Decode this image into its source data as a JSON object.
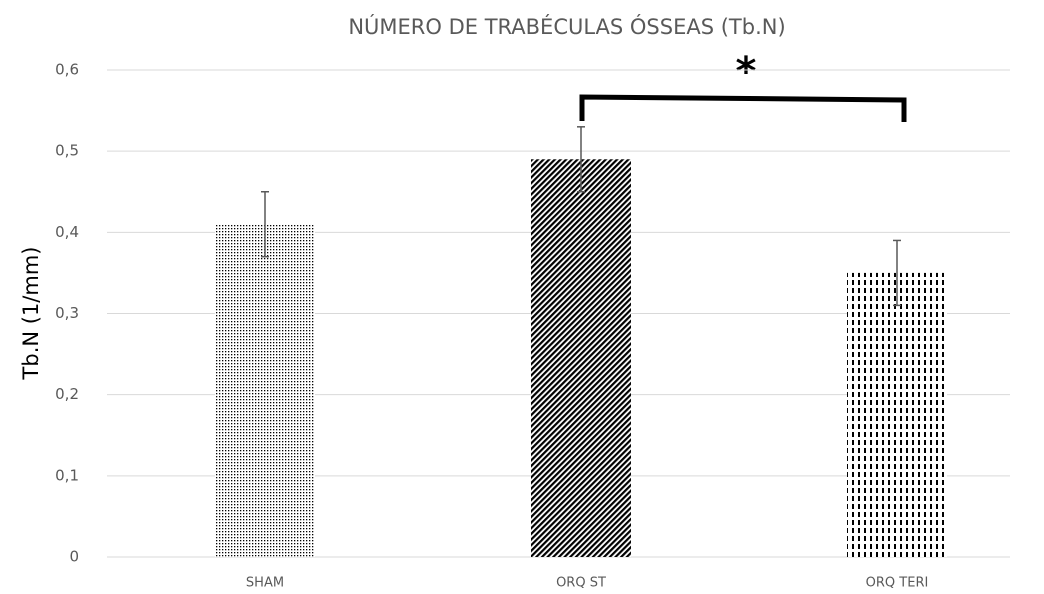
{
  "chart_data": {
    "type": "bar",
    "title": "NÚMERO DE TRABÉCULAS ÓSSEAS (Tb.N)",
    "ylabel": "Tb.N (1/mm)",
    "categories": [
      "SHAM",
      "ORQ ST",
      "ORQ TERI"
    ],
    "values": [
      0.41,
      0.49,
      0.35
    ],
    "errors": [
      0.04,
      0.04,
      0.04
    ],
    "color": "#000000",
    "ylim": [
      0,
      0.6
    ],
    "yticks": [
      0,
      {
        "value": 0.1,
        "label": "0,1"
      },
      {
        "value": 0.2,
        "label": "0,2"
      },
      {
        "value": 0.3,
        "label": "0,3"
      },
      {
        "value": 0.4,
        "label": "0,4"
      },
      {
        "value": 0.5,
        "label": "0,5"
      },
      {
        "value": 0.6,
        "label": "0,6"
      }
    ],
    "grid": true,
    "annotation": "*"
  }
}
